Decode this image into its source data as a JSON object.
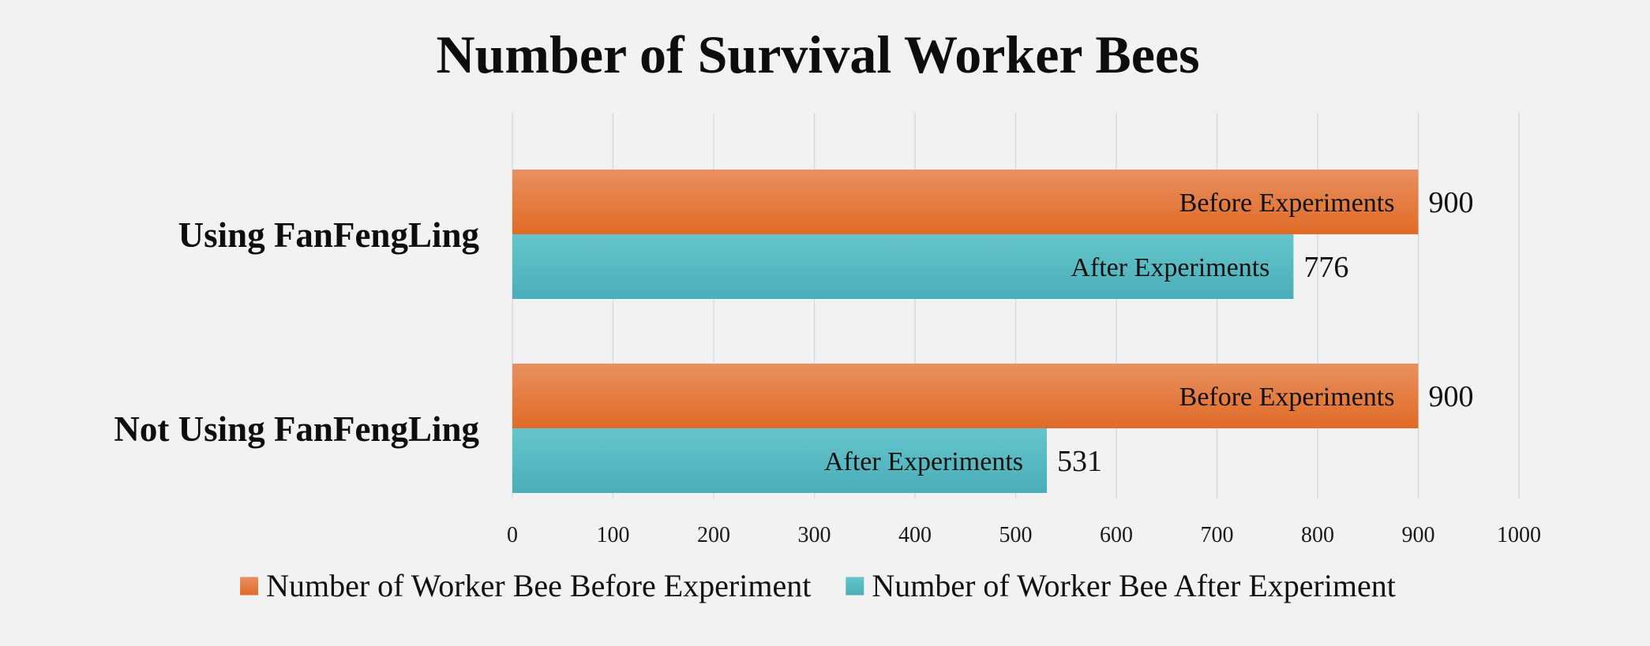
{
  "chart_data": {
    "type": "bar",
    "orientation": "horizontal",
    "title": "Number of Survival Worker Bees",
    "categories": [
      "Using FanFengLing",
      "Not Using FanFengLing"
    ],
    "series": [
      {
        "name": "Number of Worker Bee Before Experiment",
        "bar_label": "Before Experiments",
        "color": "#e8782f",
        "values": [
          900,
          900
        ]
      },
      {
        "name": "Number of Worker Bee After Experiment",
        "bar_label": "After Experiments",
        "color": "#4fb6c0",
        "values": [
          776,
          531
        ]
      }
    ],
    "xlim": [
      0,
      1000
    ],
    "xticks": [
      0,
      100,
      200,
      300,
      400,
      500,
      600,
      700,
      800,
      900,
      1000
    ],
    "grid": "vertical",
    "legend": "bottom"
  }
}
